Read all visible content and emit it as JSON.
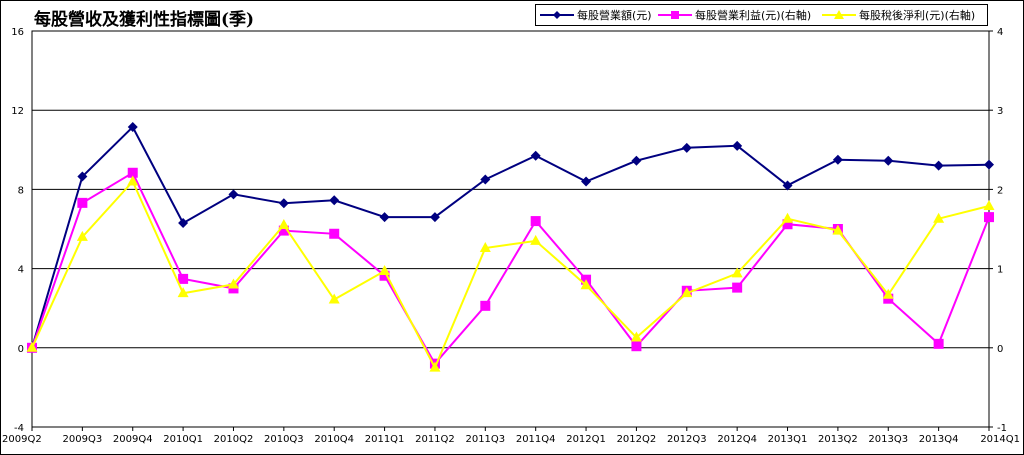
{
  "chart_data": {
    "type": "line",
    "title": "每股營收及獲利性指標圖(季)",
    "categories": [
      "2009Q2",
      "2009Q3",
      "2009Q4",
      "2010Q1",
      "2010Q2",
      "2010Q3",
      "2010Q4",
      "2011Q1",
      "2011Q2",
      "2011Q3",
      "2011Q4",
      "2012Q1",
      "2012Q2",
      "2012Q3",
      "2012Q4",
      "2013Q1",
      "2013Q2",
      "2013Q3",
      "2013Q4",
      "2014Q1"
    ],
    "y_left": {
      "ylim": [
        -4,
        16
      ],
      "ticks": [
        "16",
        "12",
        "8",
        "4",
        "0",
        "-4"
      ],
      "tick_values": [
        16,
        12,
        8,
        4,
        0,
        -4
      ]
    },
    "y_right": {
      "ylim": [
        -1,
        4
      ],
      "ticks": [
        "4",
        "3",
        "2",
        "1",
        "0",
        "-1"
      ],
      "tick_values": [
        4,
        3,
        2,
        1,
        0,
        -1
      ]
    },
    "grid": "horizontal",
    "legend_position": "top-right",
    "series": [
      {
        "name": "每股營業額(元)",
        "axis": "left",
        "color": "#000080",
        "marker": "diamond",
        "values": [
          0,
          8.65,
          11.15,
          6.3,
          7.75,
          7.3,
          7.45,
          6.6,
          6.6,
          8.5,
          9.7,
          8.4,
          9.45,
          10.1,
          10.2,
          8.2,
          9.5,
          9.45,
          9.2,
          9.25
        ]
      },
      {
        "name": "每股營業利益(元)(右軸)",
        "axis": "right",
        "color": "#ff00ff",
        "marker": "square",
        "values": [
          0,
          1.83,
          2.21,
          0.87,
          0.75,
          1.48,
          1.44,
          0.91,
          -0.2,
          0.53,
          1.6,
          0.86,
          0.02,
          0.72,
          0.76,
          1.56,
          1.5,
          0.62,
          0.05,
          1.65
        ]
      },
      {
        "name": "每股稅後淨利(元)(右軸)",
        "axis": "right",
        "color": "#ffff00",
        "marker": "triangle",
        "values": [
          0,
          1.4,
          2.1,
          0.69,
          0.8,
          1.55,
          0.61,
          0.97,
          -0.25,
          1.26,
          1.35,
          0.79,
          0.13,
          0.69,
          0.94,
          1.63,
          1.48,
          0.67,
          1.63,
          1.79
        ]
      }
    ]
  }
}
